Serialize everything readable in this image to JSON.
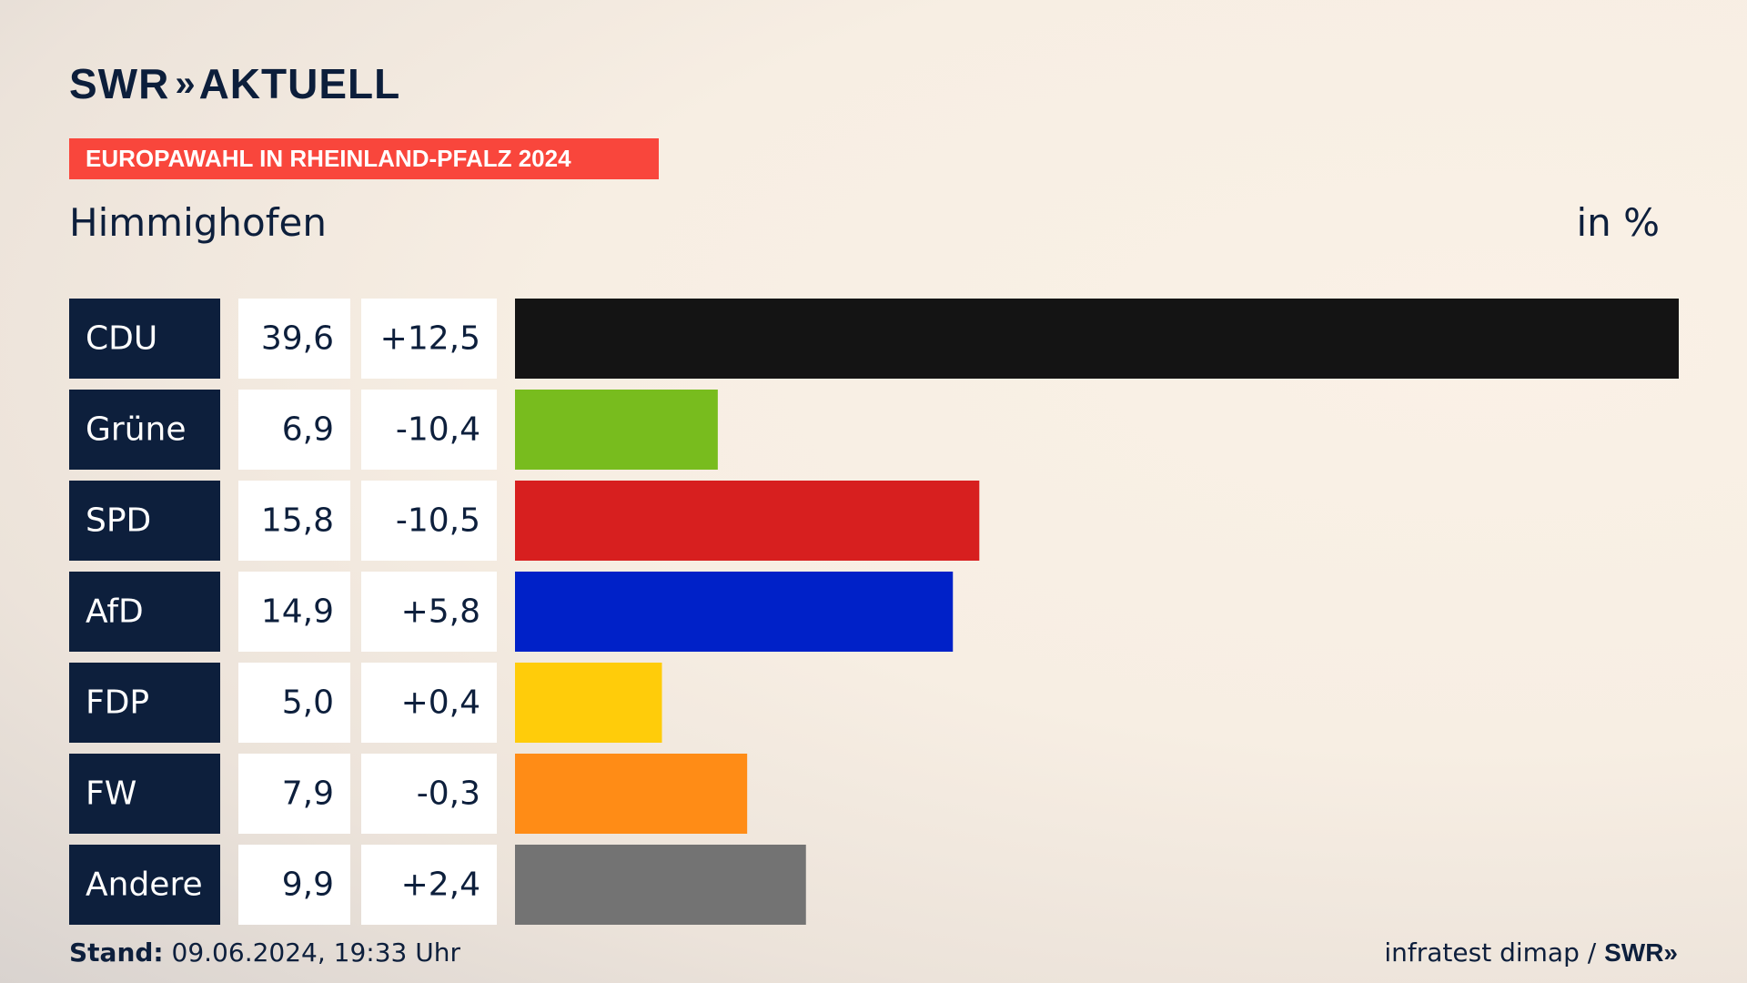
{
  "brand": {
    "logo_left": "SWR",
    "logo_chev": "»",
    "logo_right": "AKTUELL"
  },
  "banner": "EUROPAWAHL IN RHEINLAND-PFALZ 2024",
  "place": "Himmighofen",
  "unit": "in %",
  "chart_data": {
    "type": "bar",
    "categories": [
      "CDU",
      "Grüne",
      "SPD",
      "AfD",
      "FDP",
      "FW",
      "Andere"
    ],
    "values": [
      39.6,
      6.9,
      15.8,
      14.9,
      5.0,
      7.9,
      9.9
    ],
    "value_labels": [
      "39,6",
      "6,9",
      "15,8",
      "14,9",
      "5,0",
      "7,9",
      "9,9"
    ],
    "changes": [
      "+12,5",
      "-10,4",
      "-10,5",
      "+5,8",
      "+0,4",
      "-0,3",
      "+2,4"
    ],
    "colors": [
      "#141414",
      "#78bc1e",
      "#d71f1f",
      "#0021c8",
      "#ffcc0a",
      "#ff8c16",
      "#737373"
    ],
    "xlim": [
      0,
      39.6
    ]
  },
  "footer": {
    "stand_label": "Stand:",
    "stand_value": "09.06.2024, 19:33 Uhr",
    "source": "infratest dimap /",
    "source_brand": "SWR»"
  }
}
